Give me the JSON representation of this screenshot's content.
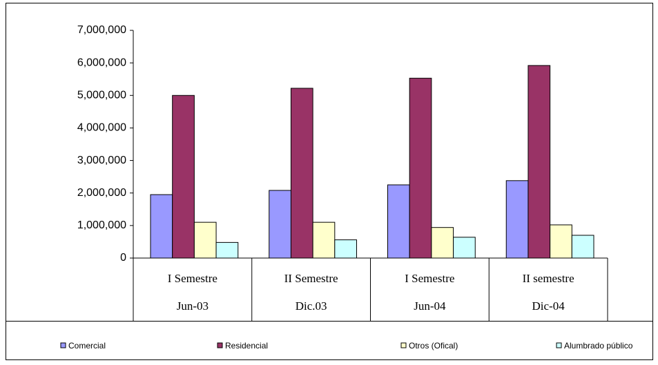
{
  "chart_data": {
    "type": "bar",
    "categories": [
      [
        "I Semestre",
        "Jun-03"
      ],
      [
        "II Semestre",
        "Dic.03"
      ],
      [
        "I Semestre",
        "Jun-04"
      ],
      [
        "II semestre",
        "Dic-04"
      ]
    ],
    "series": [
      {
        "name": "Comercial",
        "color": "#9999ff",
        "values": [
          1950000,
          2080000,
          2250000,
          2380000
        ]
      },
      {
        "name": "Residencial",
        "color": "#993366",
        "values": [
          5000000,
          5220000,
          5530000,
          5920000
        ]
      },
      {
        "name": "Otros (Ofical)",
        "color": "#ffffcc",
        "values": [
          1100000,
          1100000,
          940000,
          1020000
        ]
      },
      {
        "name": "Alumbrado público",
        "color": "#ccffff",
        "values": [
          480000,
          560000,
          640000,
          700000
        ]
      }
    ],
    "ylim": [
      0,
      7000000
    ],
    "yticks": [
      0,
      {
        "value": 1000000,
        "label": "1,000,000"
      },
      {
        "value": 2000000,
        "label": "2,000,000"
      },
      {
        "value": 3000000,
        "label": "3,000,000"
      },
      {
        "value": 4000000,
        "label": "4,000,000"
      },
      {
        "value": 5000000,
        "label": "5,000,000"
      },
      {
        "value": 6000000,
        "label": "6,000,000"
      },
      {
        "value": 7000000,
        "label": "7,000,000"
      }
    ],
    "legend": "bottom"
  }
}
